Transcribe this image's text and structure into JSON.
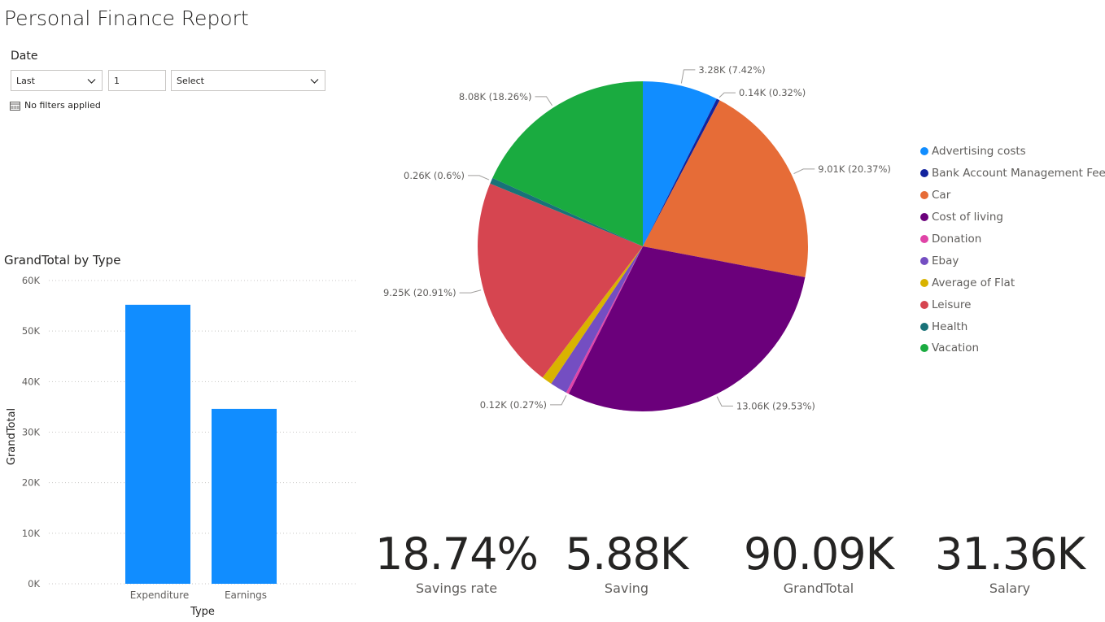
{
  "report": {
    "title": "Personal Finance Report"
  },
  "slicer": {
    "label": "Date",
    "relative_option": "Last",
    "count": "1",
    "period_placeholder": "Select",
    "filters_status": "No filters applied"
  },
  "bar_chart": {
    "title": "GrandTotal by Type",
    "x_label": "Type",
    "y_label": "GrandTotal",
    "y_ticks": [
      "0K",
      "10K",
      "20K",
      "30K",
      "40K",
      "50K",
      "60K"
    ]
  },
  "kpis": [
    {
      "value": "18.74%",
      "label": "Savings rate"
    },
    {
      "value": "5.88K",
      "label": "Saving"
    },
    {
      "value": "90.09K",
      "label": "GrandTotal"
    },
    {
      "value": "31.36K",
      "label": "Salary"
    }
  ],
  "colors": {
    "bar": "#118dff",
    "accent": "#118dff"
  },
  "chart_data": [
    {
      "type": "bar",
      "title": "GrandTotal by Type",
      "xlabel": "Type",
      "ylabel": "GrandTotal",
      "categories": [
        "Expenditure",
        "Earnings"
      ],
      "values": [
        55200,
        34600
      ],
      "ylim": [
        0,
        60000
      ],
      "grid": true
    },
    {
      "type": "pie",
      "title": "",
      "legend_position": "right",
      "slices": [
        {
          "name": "Advertising costs",
          "value": 3.28,
          "label": "3.28K (7.42%)",
          "color": "#118dff"
        },
        {
          "name": "Bank Account Management Fee",
          "value": 0.14,
          "label": "0.14K (0.32%)",
          "color": "#12239e"
        },
        {
          "name": "Car",
          "value": 9.01,
          "label": "9.01K (20.37%)",
          "color": "#e66c37"
        },
        {
          "name": "Cost of living",
          "value": 13.06,
          "label": "13.06K (29.53%)",
          "color": "#6b007b"
        },
        {
          "name": "Donation",
          "value": 0.12,
          "label": "0.12K (0.27%)",
          "color": "#e044a7"
        },
        {
          "name": "Ebay",
          "value": 0.75,
          "label": "",
          "color": "#744ec2"
        },
        {
          "name": "Average of Flat",
          "value": 0.45,
          "label": "",
          "color": "#d9b300"
        },
        {
          "name": "Leisure",
          "value": 9.25,
          "label": "9.25K (20.91%)",
          "color": "#d64550"
        },
        {
          "name": "Health",
          "value": 0.26,
          "label": "0.26K (0.6%)",
          "color": "#197278"
        },
        {
          "name": "Vacation",
          "value": 8.08,
          "label": "8.08K (18.26%)",
          "color": "#1aab40"
        }
      ]
    }
  ]
}
